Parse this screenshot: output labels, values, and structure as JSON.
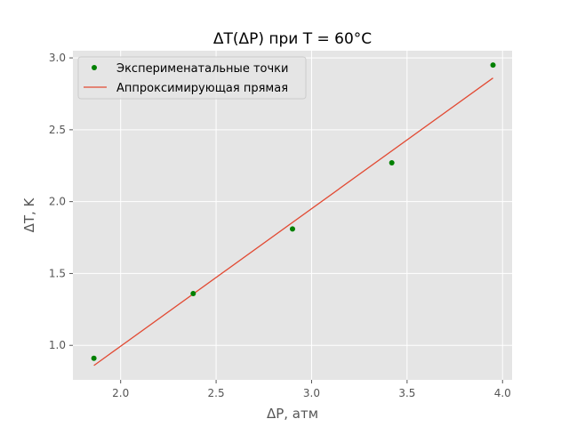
{
  "chart_data": {
    "type": "scatter",
    "title": "ΔT(ΔP) при T = 60°C",
    "xlabel": "ΔP, атм",
    "ylabel": "ΔT, K",
    "xlim": [
      1.75,
      4.05
    ],
    "ylim": [
      0.76,
      3.05
    ],
    "xticks": [
      2.0,
      2.5,
      3.0,
      3.5,
      4.0
    ],
    "yticks": [
      1.0,
      1.5,
      2.0,
      2.5,
      3.0
    ],
    "xtick_labels": [
      "2.0",
      "2.5",
      "3.0",
      "3.5",
      "4.0"
    ],
    "ytick_labels": [
      "1.0",
      "1.5",
      "2.0",
      "2.5",
      "3.0"
    ],
    "grid": true,
    "legend_position": "top-left",
    "points": {
      "name": "Эксперименатальные точки",
      "color": "#008000",
      "x": [
        1.86,
        2.38,
        2.9,
        3.42,
        3.95
      ],
      "y": [
        0.91,
        1.36,
        1.81,
        2.27,
        2.95
      ]
    },
    "fit_line": {
      "name": "Аппроксимирующая прямая",
      "color": "#E24A33",
      "x": [
        1.86,
        3.95
      ],
      "y": [
        0.86,
        2.86
      ]
    }
  }
}
